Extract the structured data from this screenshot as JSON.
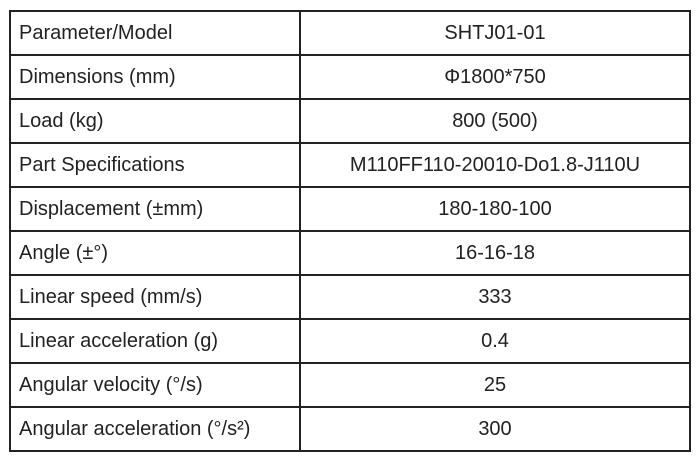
{
  "table": {
    "rows": [
      [
        "Parameter/Model",
        "SHTJ01-01"
      ],
      [
        "Dimensions (mm)",
        "Φ1800*750"
      ],
      [
        "Load (kg)",
        "800 (500)"
      ],
      [
        "Part Specifications",
        "M110FF110-20010-Do1.8-J110U"
      ],
      [
        "Displacement (±mm)",
        "180-180-100"
      ],
      [
        "Angle (±°)",
        "16-16-18"
      ],
      [
        "Linear speed (mm/s)",
        "333"
      ],
      [
        "Linear acceleration (g)",
        "0.4"
      ],
      [
        "Angular velocity (°/s)",
        "25"
      ],
      [
        "Angular acceleration (°/s²)",
        "300"
      ]
    ]
  }
}
